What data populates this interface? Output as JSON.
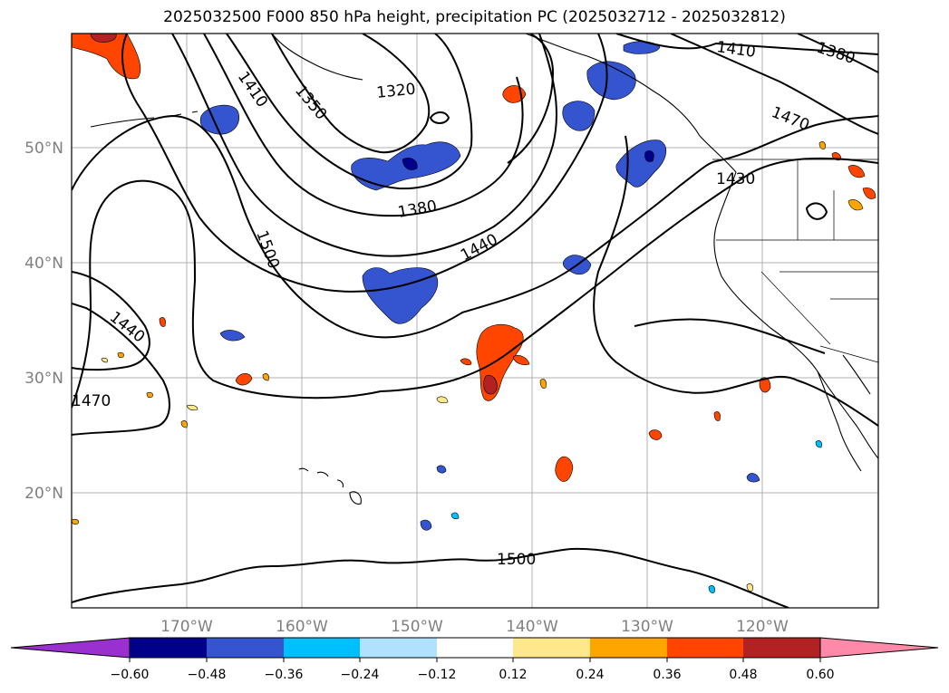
{
  "title": "2025032500 F000 850 hPa height, precipitation PC (2025032712 - 2025032812)",
  "map": {
    "lat_labels": [
      "50°N",
      "40°N",
      "30°N",
      "20°N"
    ],
    "lon_labels": [
      "170°W",
      "160°W",
      "150°W",
      "140°W",
      "130°W",
      "120°W"
    ],
    "grid": true,
    "contour_labels": [
      "1410",
      "1380",
      "1470",
      "1430",
      "1320",
      "1350",
      "1410",
      "1380",
      "1440",
      "1500",
      "1440",
      "1470",
      "1500"
    ]
  },
  "colorbar": {
    "ticks": [
      "−0.60",
      "−0.48",
      "−0.36",
      "−0.24",
      "−0.12",
      "0.12",
      "0.24",
      "0.36",
      "0.48",
      "0.60"
    ],
    "colors": [
      "#9b30d0",
      "#00008b",
      "#3455cf",
      "#00bfff",
      "#b0e2ff",
      "#ffffff",
      "#ffe88c",
      "#ffa500",
      "#ff4500",
      "#b22222",
      "#ff89a8"
    ]
  }
}
